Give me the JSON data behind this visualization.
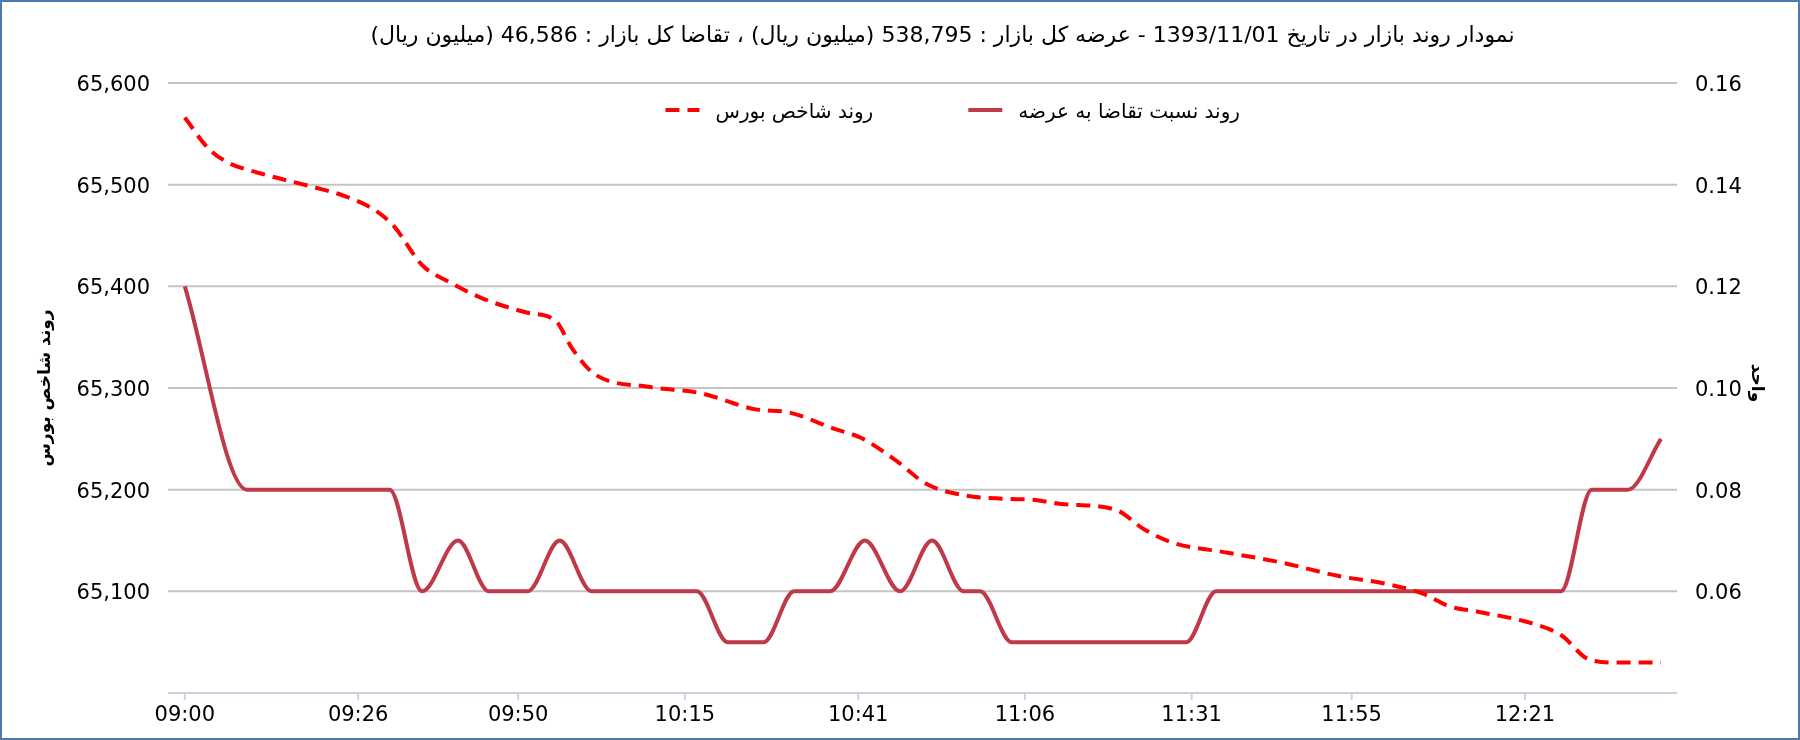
{
  "chart_data": {
    "type": "line",
    "title": "نمودار روند بازار در تاریخ 1393/11/01 - عرضه کل بازار : 538,795 (میلیون ریال) ، تقاضا کل بازار : 46,586 (میلیون ریال)",
    "ylabel": "روند شاخص بورس",
    "y2label": "واحد",
    "legend": "top",
    "grid": "y",
    "xlim": [
      8.958,
      12.73
    ],
    "xticks": [
      {
        "value": 9,
        "label": "09:00"
      },
      {
        "value": 9.4333,
        "label": "09:26"
      },
      {
        "value": 9.8333,
        "label": "09:50"
      },
      {
        "value": 10.25,
        "label": "10:15"
      },
      {
        "value": 10.6833,
        "label": "10:41"
      },
      {
        "value": 11.1,
        "label": "11:06"
      },
      {
        "value": 11.5167,
        "label": "11:31"
      },
      {
        "value": 11.9167,
        "label": "11:55"
      },
      {
        "value": 12.35,
        "label": "12:21"
      }
    ],
    "ylim": [
      65000,
      65600
    ],
    "yticks": [
      {
        "value": 65100,
        "label": "65,100"
      },
      {
        "value": 65200,
        "label": "65,200"
      },
      {
        "value": 65300,
        "label": "65,300"
      },
      {
        "value": 65400,
        "label": "65,400"
      },
      {
        "value": 65500,
        "label": "65,500"
      },
      {
        "value": 65600,
        "label": "65,600"
      }
    ],
    "y2lim": [
      0.04,
      0.16
    ],
    "y2ticks": [
      {
        "value": 0.06,
        "label": "0.06"
      },
      {
        "value": 0.08,
        "label": "0.08"
      },
      {
        "value": 0.1,
        "label": "0.10"
      },
      {
        "value": 0.12,
        "label": "0.12"
      },
      {
        "value": 0.14,
        "label": "0.14"
      },
      {
        "value": 0.16,
        "label": "0.16"
      }
    ],
    "series": [
      {
        "name": "روند نسبت تقاضا به عرضه",
        "color": "#be3a4a",
        "axis": "y2",
        "line_style": "solid",
        "x": [
          9,
          9.155,
          9.512,
          9.593,
          9.683,
          9.76,
          9.857,
          9.937,
          10.017,
          10.28,
          10.357,
          10.447,
          10.523,
          10.613,
          10.7,
          10.788,
          10.868,
          10.947,
          10.988,
          11.067,
          11.503,
          11.578,
          12.44,
          12.517,
          12.607,
          12.69
        ],
        "values": [
          0.12,
          0.08,
          0.08,
          0.06,
          0.07,
          0.06,
          0.06,
          0.07,
          0.06,
          0.06,
          0.05,
          0.05,
          0.06,
          0.06,
          0.07,
          0.06,
          0.07,
          0.06,
          0.06,
          0.05,
          0.05,
          0.06,
          0.06,
          0.08,
          0.08,
          0.09
        ]
      },
      {
        "name": "روند شاخص بورس",
        "color": "#ff0000",
        "axis": "y",
        "line_style": "dashed",
        "x": [
          9,
          9.058,
          9.107,
          9.19,
          9.328,
          9.398,
          9.475,
          9.523,
          9.593,
          9.662,
          9.745,
          9.857,
          9.927,
          9.968,
          10.023,
          10.163,
          10.288,
          10.427,
          10.51,
          10.622,
          10.69,
          10.773,
          10.857,
          10.955,
          11.052,
          11.12,
          11.19,
          11.328,
          11.398,
          11.468,
          11.607,
          11.745,
          11.885,
          11.995,
          12.093,
          12.163,
          12.232,
          12.372,
          12.44,
          12.51,
          12.578,
          12.69
        ],
        "values": [
          65566,
          65536,
          65522,
          65511,
          65497,
          65489,
          65475,
          65459,
          65421,
          65404,
          65388,
          65374,
          65366,
          65339,
          65314,
          65301,
          65295,
          65279,
          65276,
          65260,
          65251,
          65230,
          65205,
          65194,
          65191,
          65190,
          65186,
          65180,
          65161,
          65148,
          65138,
          65128,
          65115,
          65108,
          65098,
          65085,
          65080,
          65068,
          65057,
          65033,
          65030,
          65030
        ]
      }
    ]
  }
}
